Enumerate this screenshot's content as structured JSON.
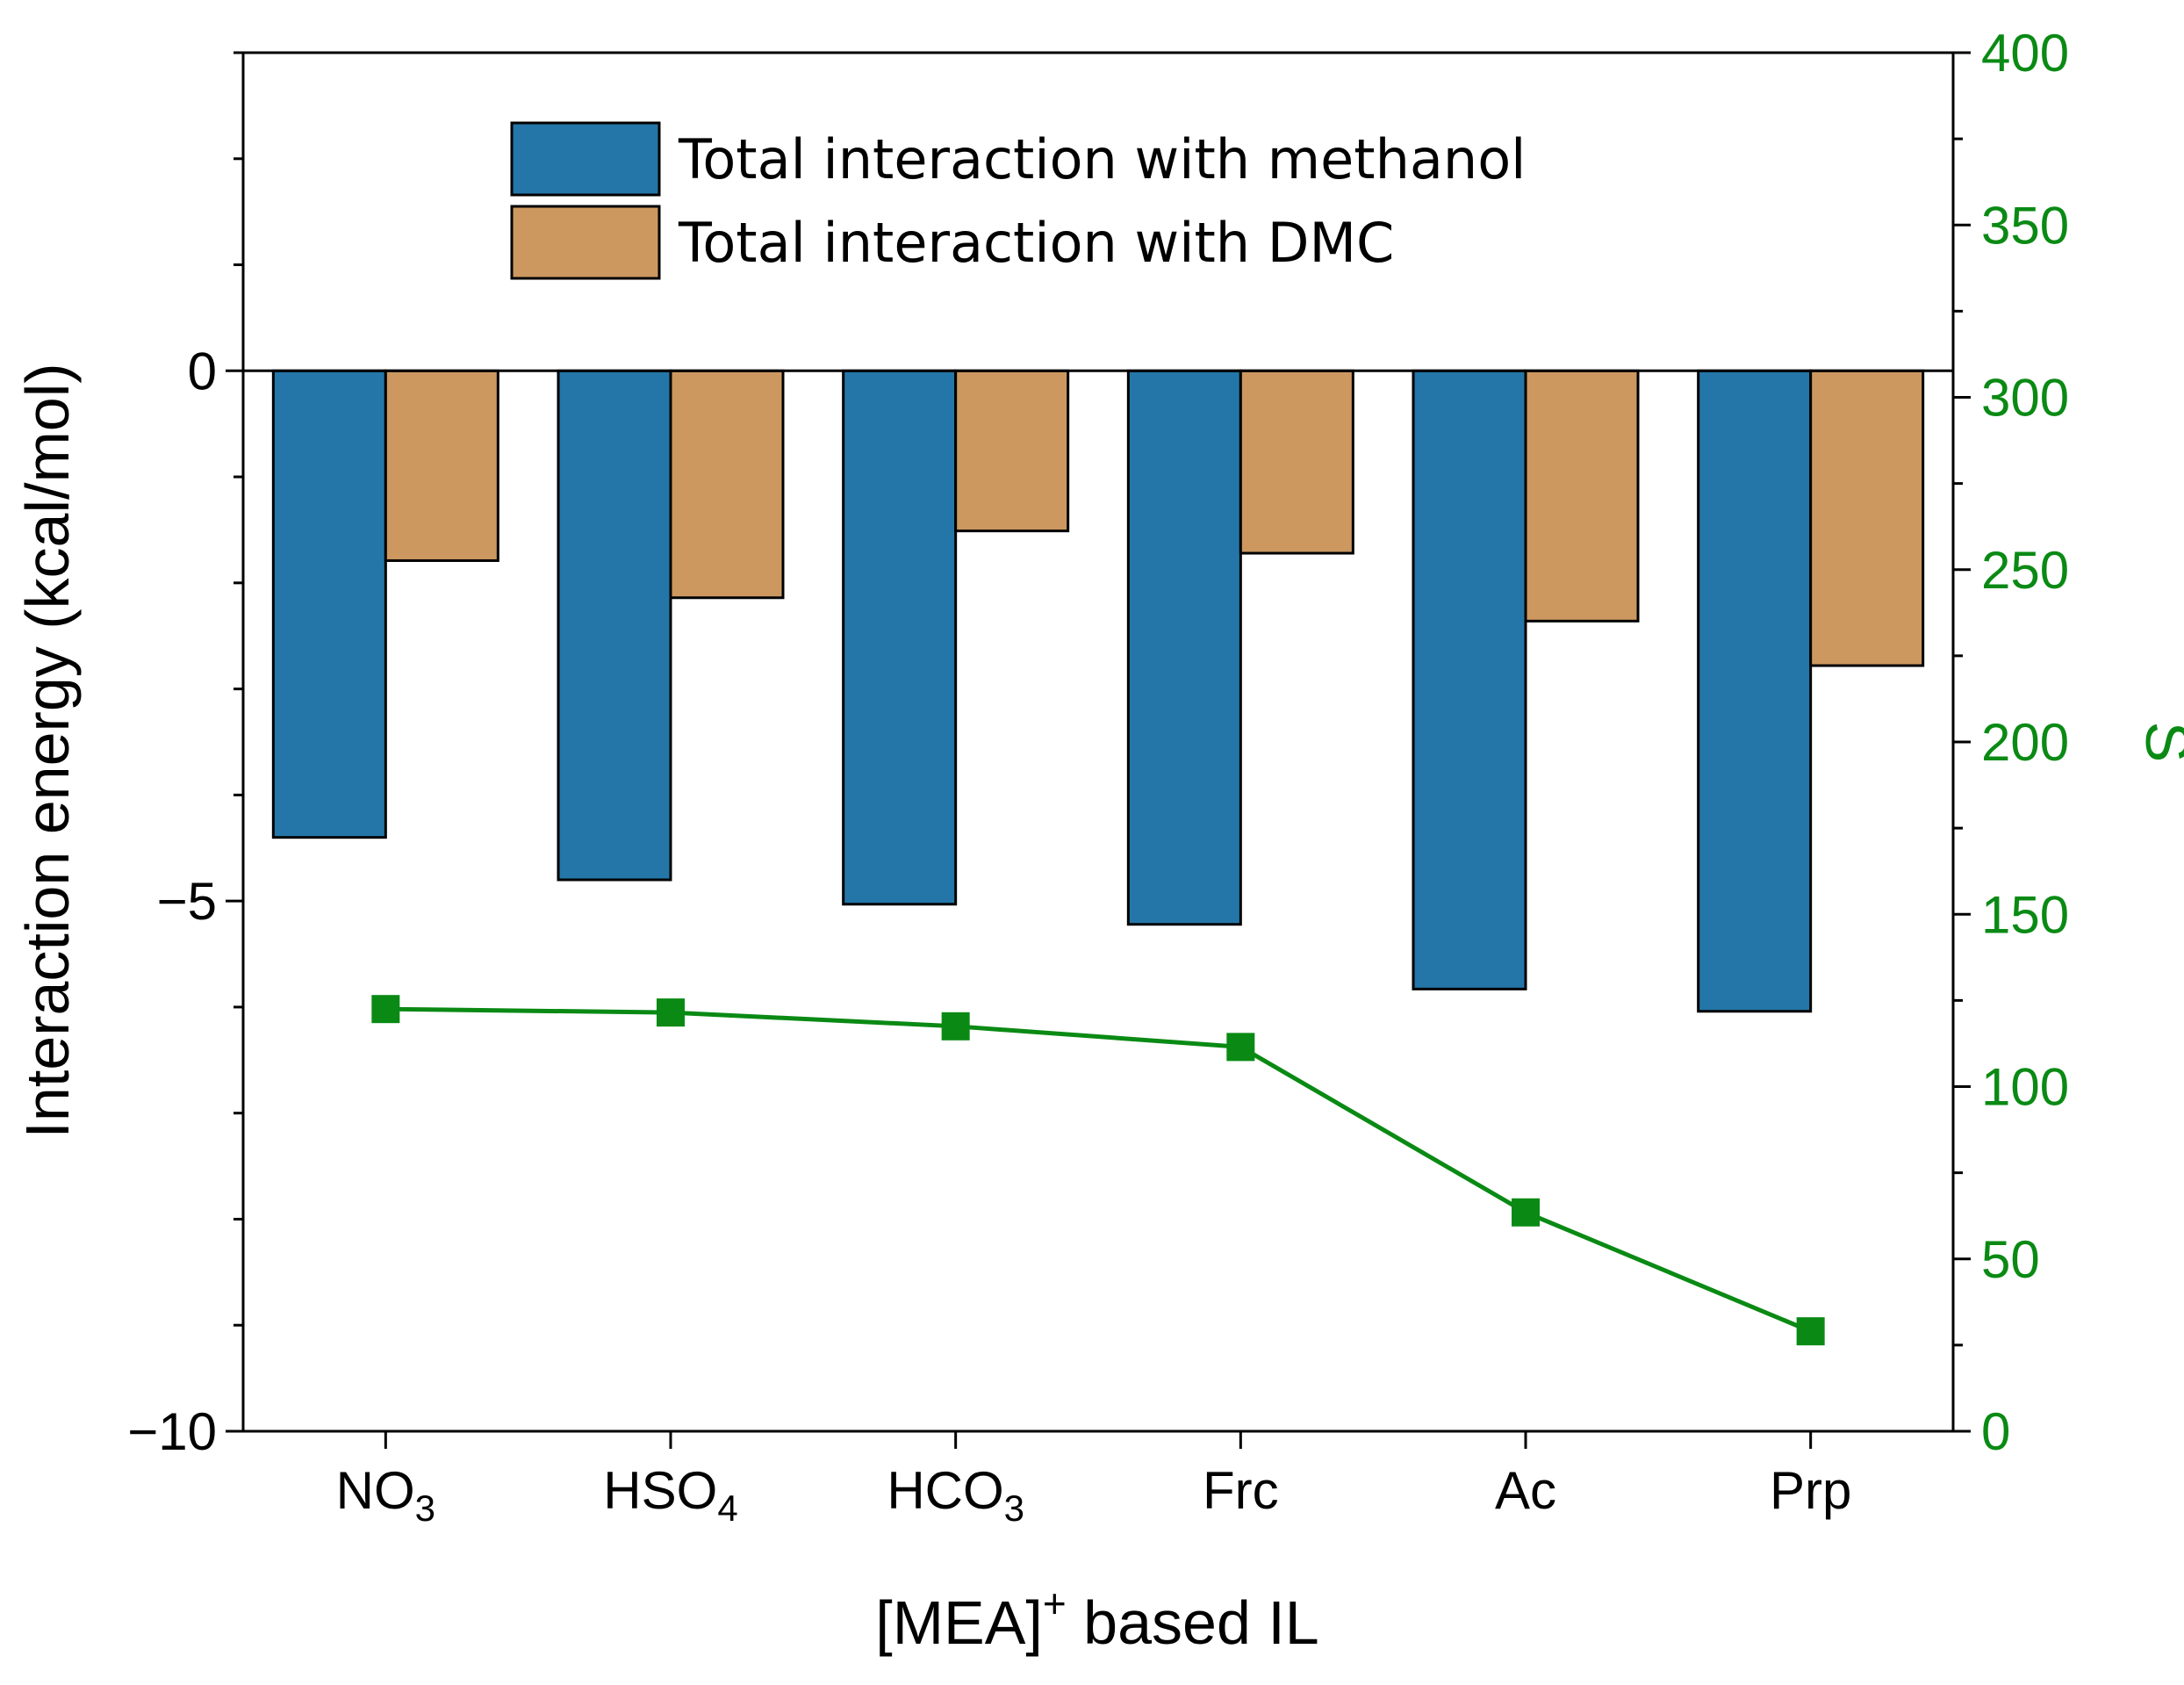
{
  "chart_data": {
    "type": "bar",
    "categories": [
      {
        "main": "NO",
        "sub": "3"
      },
      {
        "main": "HSO",
        "sub": "4"
      },
      {
        "main": "HCO",
        "sub": "3"
      },
      {
        "main": "Frc",
        "sub": ""
      },
      {
        "main": "Ac",
        "sub": ""
      },
      {
        "main": "Prp",
        "sub": ""
      }
    ],
    "series": [
      {
        "name": "Total interaction with methanol",
        "color": "#2476a8",
        "values": [
          -4.4,
          -4.8,
          -5.03,
          -5.22,
          -5.83,
          -6.04
        ]
      },
      {
        "name": "Total interaction with DMC",
        "color": "#cc9860",
        "values": [
          -1.79,
          -2.14,
          -1.51,
          -1.72,
          -2.36,
          -2.78
        ]
      }
    ],
    "line_series": {
      "name": "S",
      "color": "#0a8a14",
      "axis": "right",
      "values": [
        122.5,
        121.5,
        117.5,
        111.5,
        63.5,
        29
      ]
    },
    "xlabel": {
      "main": "[MEA]",
      "sup": "+",
      "rest": " based IL"
    },
    "ylabel": "Interaction energy (kcal/mol)",
    "y2label": "S",
    "ylim": [
      -10,
      3
    ],
    "y2lim": [
      0,
      400
    ],
    "yticks": [
      0,
      -5,
      -10
    ],
    "yticklabels": [
      "0",
      "−5",
      "−10"
    ],
    "y2ticks": [
      0,
      50,
      100,
      150,
      200,
      250,
      300,
      350,
      400
    ],
    "y2ticklabels": [
      "0",
      "50",
      "100",
      "150",
      "200",
      "250",
      "300",
      "350",
      "400"
    ],
    "right_axis_color": "#0a8a14",
    "legend_position": "top-center"
  }
}
